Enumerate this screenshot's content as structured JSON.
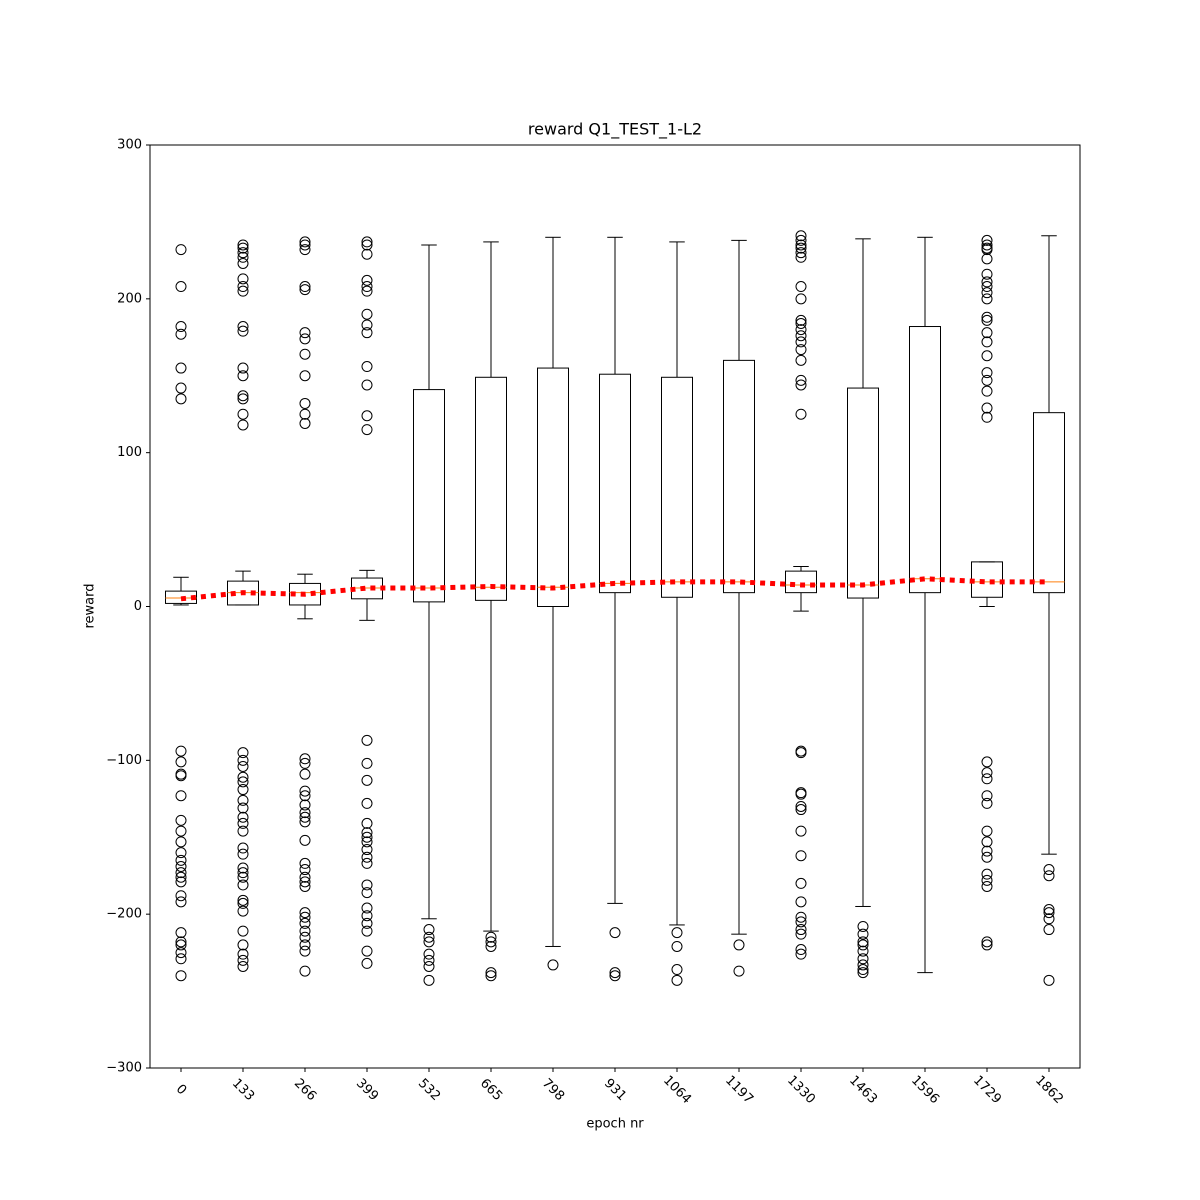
{
  "chart_data": {
    "type": "box",
    "title": "reward Q1_TEST_1-L2",
    "x_label": "epoch nr",
    "y_label": "reward",
    "categories": [
      "0",
      "133",
      "266",
      "399",
      "532",
      "665",
      "798",
      "931",
      "1064",
      "1197",
      "1330",
      "1463",
      "1596",
      "1729",
      "1862"
    ],
    "ylim": [
      -300,
      300
    ],
    "yticks": [
      {
        "value": -300,
        "label": "−300"
      },
      {
        "value": -200,
        "label": "−200"
      },
      {
        "value": -100,
        "label": "−100"
      },
      0,
      100,
      200,
      300
    ],
    "box_color": "#000000",
    "median_color": "#ff7f0e",
    "boxes": [
      {
        "whislo": 1,
        "q1": 2,
        "med": 5.5,
        "q3": 10,
        "whishi": 19,
        "fliers": [
          232,
          208,
          182,
          177,
          155,
          142,
          135,
          -94,
          -101,
          -109,
          -110,
          -123,
          -139,
          -146,
          -153,
          -160,
          -165,
          -169,
          -173,
          -176,
          -179,
          -188,
          -192,
          -212,
          -218,
          -220,
          -225,
          -229,
          -240
        ]
      },
      {
        "whislo": 1,
        "q1": 1,
        "med": 9,
        "q3": 16.5,
        "whishi": 23,
        "fliers": [
          235,
          233,
          230,
          227,
          223,
          213,
          208,
          205,
          182,
          179,
          155,
          150,
          137,
          135,
          125,
          118,
          -95,
          -100,
          -104,
          -111,
          -114,
          -119,
          -126,
          -131,
          -137,
          -141,
          -146,
          -157,
          -161,
          -170,
          -173,
          -176,
          -181,
          -191,
          -193,
          -198,
          -211,
          -220,
          -226,
          -230,
          -234
        ]
      },
      {
        "whislo": -8,
        "q1": 1,
        "med": 9,
        "q3": 15,
        "whishi": 21,
        "fliers": [
          237,
          235,
          232,
          208,
          206,
          178,
          174,
          164,
          150,
          132,
          125,
          119,
          -99,
          -102,
          -109,
          -120,
          -123,
          -129,
          -134,
          -137,
          -140,
          -152,
          -167,
          -171,
          -176,
          -179,
          -182,
          -199,
          -202,
          -206,
          -211,
          -215,
          -220,
          -224,
          -237
        ]
      },
      {
        "whislo": -9,
        "q1": 5,
        "med": 12,
        "q3": 18.5,
        "whishi": 23.5,
        "fliers": [
          237,
          235,
          229,
          212,
          208,
          205,
          190,
          183,
          178,
          156,
          144,
          124,
          115,
          -87,
          -102,
          -113,
          -128,
          -141,
          -147,
          -150,
          -153,
          -158,
          -163,
          -167,
          -181,
          -186,
          -196,
          -201,
          -206,
          -211,
          -224,
          -232
        ]
      },
      {
        "whislo": -203,
        "q1": 3,
        "med": 12,
        "q3": 141,
        "whishi": 235,
        "fliers": [
          -210,
          -215,
          -218,
          -226,
          -230,
          -234,
          -243
        ]
      },
      {
        "whislo": -211,
        "q1": 4,
        "med": 12.5,
        "q3": 149,
        "whishi": 237,
        "fliers": [
          -215,
          -218,
          -221,
          -238,
          -240
        ]
      },
      {
        "whislo": -221,
        "q1": 0,
        "med": 12.5,
        "q3": 155,
        "whishi": 240,
        "fliers": [
          -233
        ]
      },
      {
        "whislo": -193,
        "q1": 9,
        "med": 15,
        "q3": 151,
        "whishi": 240,
        "fliers": [
          -212,
          -238,
          -240
        ]
      },
      {
        "whislo": -207,
        "q1": 6,
        "med": 16,
        "q3": 149,
        "whishi": 237,
        "fliers": [
          -212,
          -221,
          -236,
          -243
        ]
      },
      {
        "whislo": -213,
        "q1": 9,
        "med": 16,
        "q3": 160,
        "whishi": 238,
        "fliers": [
          -220,
          -237
        ]
      },
      {
        "whislo": -3,
        "q1": 9,
        "med": 14,
        "q3": 23,
        "whishi": 26,
        "fliers": [
          241,
          238,
          235,
          233,
          230,
          227,
          208,
          200,
          186,
          184,
          180,
          176,
          172,
          167,
          160,
          147,
          144,
          125,
          -94,
          -95,
          -121,
          -122,
          -130,
          -132,
          -146,
          -162,
          -180,
          -192,
          -202,
          -205,
          -210,
          -213,
          -223,
          -226
        ]
      },
      {
        "whislo": -195,
        "q1": 5.5,
        "med": 14,
        "q3": 142,
        "whishi": 239,
        "fliers": [
          -208,
          -213,
          -218,
          -220,
          -224,
          -229,
          -233,
          -236,
          -238
        ]
      },
      {
        "whislo": -238,
        "q1": 9,
        "med": 18,
        "q3": 182,
        "whishi": 240,
        "fliers": []
      },
      {
        "whislo": 0,
        "q1": 6,
        "med": 16,
        "q3": 29,
        "whishi": 29,
        "fliers": [
          238,
          235,
          233,
          232,
          226,
          216,
          211,
          208,
          204,
          200,
          188,
          186,
          178,
          172,
          163,
          152,
          147,
          140,
          129,
          123,
          -101,
          -108,
          -112,
          -123,
          -128,
          -146,
          -153,
          -159,
          -163,
          -174,
          -178,
          -182,
          -218,
          -220
        ]
      },
      {
        "whislo": -161,
        "q1": 9,
        "med": 16,
        "q3": 126,
        "whishi": 241,
        "fliers": [
          -171,
          -175,
          -197,
          -199,
          -203,
          -210,
          -243
        ]
      }
    ],
    "means": {
      "color": "#ff0000",
      "values": [
        5,
        9,
        8,
        12,
        12,
        13,
        12,
        15,
        16,
        16,
        14,
        14,
        18,
        16,
        16
      ]
    }
  }
}
